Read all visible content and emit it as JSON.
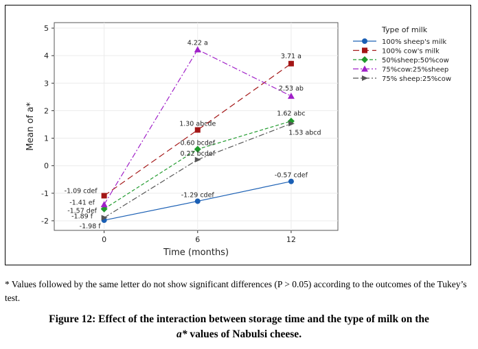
{
  "chart_data": {
    "type": "line",
    "xlabel": "Time (months)",
    "ylabel": "Mean of a*",
    "x": [
      0,
      6,
      12
    ],
    "xticks": [
      "0",
      "6",
      "12"
    ],
    "xlim": [
      -3.2,
      15
    ],
    "ylim": [
      -2.35,
      5.2
    ],
    "yticks": [
      "-2",
      "-1",
      "0",
      "1",
      "2",
      "3",
      "4",
      "5"
    ],
    "grid": true,
    "legend_title": "Type of milk",
    "legend_position": "right",
    "series": [
      {
        "name": "100% sheep's milk",
        "values": [
          -1.98,
          -1.29,
          -0.57
        ],
        "labels": [
          "-1.98 f",
          "-1.29 cdef",
          "-0.57 cdef"
        ],
        "color": "#1a5fb4",
        "marker": "circle",
        "dash": "solid"
      },
      {
        "name": "100% cow's milk",
        "values": [
          -1.09,
          1.3,
          3.71
        ],
        "labels": [
          "-1.09 cdef",
          "1.30 abcde",
          "3.71 a"
        ],
        "color": "#a31515",
        "marker": "square",
        "dash": "longdash"
      },
      {
        "name": "50%sheep:50%cow",
        "values": [
          -1.57,
          0.6,
          1.62
        ],
        "labels": [
          "-1.57 def",
          "0.60 bcdef",
          "1.62 abc"
        ],
        "color": "#1f9a2c",
        "marker": "diamond",
        "dash": "dashed"
      },
      {
        "name": "75%cow:25%sheep",
        "values": [
          -1.41,
          4.22,
          2.53
        ],
        "labels": [
          "-1.41 ef",
          "4.22 a",
          "2.53 ab"
        ],
        "color": "#a020c8",
        "marker": "triangle",
        "dash": "dashdot"
      },
      {
        "name": "75% sheep:25%cow",
        "values": [
          -1.89,
          0.22,
          1.53
        ],
        "labels": [
          "-1.89 f",
          "0.22 bcdef",
          "1.53 abcd"
        ],
        "color": "#555555",
        "marker": "arrow",
        "dash": "dashdot"
      }
    ]
  },
  "footnote": "* Values followed by the same letter do not show significant differences (P > 0.05) according to the outcomes of the Tukey’s test.",
  "caption": {
    "line1": "Figure 12: Effect of the interaction between storage time and the type of milk on the",
    "line2_italic": "a*",
    "line2_rest": " values of Nabulsi cheese."
  }
}
